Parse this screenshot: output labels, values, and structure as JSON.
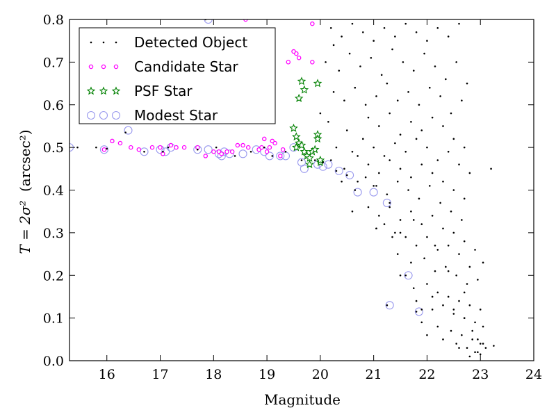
{
  "chart_data": {
    "type": "scatter",
    "title": "",
    "xlabel": "Magnitude",
    "ylabel_math": "T = 2σ²",
    "ylabel_unit": "(arcsec²)",
    "xlim": [
      15.3,
      24
    ],
    "ylim": [
      0.0,
      0.8
    ],
    "xticks": [
      "16",
      "17",
      "18",
      "19",
      "20",
      "21",
      "22",
      "23",
      "24"
    ],
    "yticks": [
      "0.0",
      "0.1",
      "0.2",
      "0.3",
      "0.4",
      "0.5",
      "0.6",
      "0.7",
      "0.8"
    ],
    "grid": false,
    "legend_position": "top-left",
    "colors": {
      "detected": "#000000",
      "candidate": "#ff00ff",
      "psf": "#008000",
      "modest": "#9999ee"
    },
    "series": [
      {
        "name": "Detected Object",
        "marker": "dot",
        "x": [
          15.45,
          15.8,
          16.0,
          16.35,
          16.7,
          17.05,
          17.15,
          17.7,
          17.85,
          18.05,
          18.4,
          18.7,
          18.95,
          19.1,
          19.35,
          19.65,
          19.9,
          20.05,
          20.3,
          20.5,
          20.7,
          21.0,
          21.3,
          21.6,
          21.8,
          21.9,
          20.2,
          20.4,
          20.6,
          20.8,
          21.0,
          21.2,
          21.4,
          21.6,
          21.8,
          22.0,
          22.2,
          22.4,
          22.6,
          20.1,
          20.35,
          20.55,
          20.75,
          20.95,
          21.15,
          21.35,
          21.55,
          21.75,
          21.95,
          22.15,
          22.35,
          22.55,
          22.75,
          20.25,
          20.45,
          20.65,
          20.85,
          21.05,
          21.25,
          21.45,
          21.65,
          21.85,
          22.05,
          22.25,
          22.45,
          22.65,
          20.15,
          20.5,
          20.9,
          21.1,
          21.3,
          21.5,
          21.7,
          21.9,
          22.1,
          22.3,
          22.5,
          22.7,
          20.3,
          20.6,
          20.8,
          21.0,
          21.2,
          21.4,
          21.6,
          21.8,
          22.0,
          22.2,
          22.4,
          22.6,
          22.8,
          20.2,
          20.45,
          20.7,
          20.9,
          21.1,
          21.3,
          21.5,
          21.7,
          21.9,
          22.1,
          22.3,
          22.5,
          22.7,
          20.4,
          20.65,
          20.85,
          21.05,
          21.25,
          21.45,
          21.65,
          21.85,
          22.05,
          22.25,
          22.45,
          22.65,
          21.1,
          21.3,
          21.5,
          21.7,
          21.9,
          22.1,
          22.3,
          22.5,
          22.7,
          22.9,
          21.05,
          21.4,
          21.6,
          21.8,
          22.0,
          22.2,
          22.4,
          22.6,
          22.8,
          21.45,
          21.7,
          21.95,
          22.15,
          22.35,
          22.55,
          22.75,
          22.95,
          21.5,
          21.75,
          22.0,
          22.2,
          22.4,
          22.6,
          22.8,
          23.0,
          21.8,
          22.1,
          22.3,
          22.5,
          22.7,
          22.9,
          23.05,
          21.9,
          22.2,
          22.45,
          22.65,
          22.85,
          23.0,
          22.0,
          22.3,
          22.55,
          22.75,
          22.95,
          22.6,
          22.8,
          22.9,
          23.0,
          23.1,
          23.25,
          22.1,
          22.5,
          22.7,
          22.85,
          22.95,
          23.05,
          20.25,
          20.0,
          20.6,
          20.9,
          21.2,
          21.5,
          21.75,
          21.05,
          21.35,
          23.2,
          23.05,
          22.7,
          22.4,
          22.15,
          21.25
        ],
        "y": [
          0.5,
          0.5,
          0.497,
          0.535,
          0.49,
          0.49,
          0.5,
          0.495,
          0.8,
          0.5,
          0.48,
          0.49,
          0.5,
          0.48,
          0.49,
          0.47,
          0.47,
          0.465,
          0.445,
          0.435,
          0.42,
          0.41,
          0.37,
          0.2,
          0.115,
          0.12,
          0.78,
          0.76,
          0.79,
          0.77,
          0.75,
          0.78,
          0.76,
          0.79,
          0.77,
          0.75,
          0.78,
          0.76,
          0.79,
          0.7,
          0.68,
          0.72,
          0.69,
          0.71,
          0.67,
          0.73,
          0.7,
          0.68,
          0.72,
          0.69,
          0.66,
          0.7,
          0.65,
          0.63,
          0.61,
          0.64,
          0.6,
          0.62,
          0.65,
          0.61,
          0.63,
          0.6,
          0.64,
          0.62,
          0.58,
          0.61,
          0.56,
          0.54,
          0.57,
          0.55,
          0.58,
          0.53,
          0.56,
          0.54,
          0.57,
          0.55,
          0.52,
          0.5,
          0.5,
          0.49,
          0.52,
          0.5,
          0.48,
          0.51,
          0.49,
          0.52,
          0.5,
          0.47,
          0.49,
          0.46,
          0.44,
          0.47,
          0.45,
          0.48,
          0.46,
          0.44,
          0.47,
          0.45,
          0.43,
          0.46,
          0.44,
          0.42,
          0.4,
          0.38,
          0.42,
          0.4,
          0.43,
          0.41,
          0.39,
          0.42,
          0.4,
          0.38,
          0.41,
          0.37,
          0.35,
          0.33,
          0.34,
          0.36,
          0.33,
          0.35,
          0.32,
          0.34,
          0.31,
          0.3,
          0.28,
          0.26,
          0.31,
          0.3,
          0.29,
          0.27,
          0.29,
          0.26,
          0.27,
          0.25,
          0.22,
          0.25,
          0.23,
          0.24,
          0.21,
          0.22,
          0.2,
          0.18,
          0.19,
          0.2,
          0.17,
          0.18,
          0.16,
          0.15,
          0.14,
          0.13,
          0.12,
          0.14,
          0.12,
          0.13,
          0.11,
          0.1,
          0.09,
          0.08,
          0.09,
          0.08,
          0.07,
          0.06,
          0.05,
          0.04,
          0.06,
          0.05,
          0.04,
          0.03,
          0.02,
          0.03,
          0.01,
          0.02,
          0.015,
          0.03,
          0.035,
          0.15,
          0.12,
          0.1,
          0.07,
          0.05,
          0.04,
          0.74,
          0.58,
          0.35,
          0.36,
          0.32,
          0.3,
          0.33,
          0.31,
          0.29,
          0.45,
          0.23,
          0.16,
          0.21,
          0.27,
          0.13
        ]
      },
      {
        "name": "Candidate Star",
        "marker": "ring",
        "x": [
          15.95,
          16.1,
          16.25,
          16.45,
          16.6,
          16.85,
          17.0,
          17.05,
          17.2,
          17.3,
          17.45,
          17.7,
          17.85,
          18.0,
          18.1,
          18.15,
          18.25,
          18.35,
          18.45,
          18.55,
          18.65,
          18.85,
          18.95,
          19.0,
          19.05,
          19.15,
          19.25,
          19.3,
          19.55,
          19.6,
          19.85,
          18.9,
          19.1,
          19.4,
          19.5,
          19.85,
          18.6
        ],
        "y": [
          0.495,
          0.515,
          0.51,
          0.5,
          0.495,
          0.5,
          0.5,
          0.485,
          0.505,
          0.5,
          0.5,
          0.5,
          0.48,
          0.49,
          0.49,
          0.485,
          0.49,
          0.49,
          0.505,
          0.505,
          0.5,
          0.495,
          0.52,
          0.49,
          0.5,
          0.51,
          0.48,
          0.495,
          0.72,
          0.71,
          0.79,
          0.5,
          0.515,
          0.7,
          0.725,
          0.7,
          0.8
        ]
      },
      {
        "name": "PSF Star",
        "marker": "star",
        "x": [
          19.5,
          19.55,
          19.6,
          19.65,
          19.7,
          19.75,
          19.8,
          19.85,
          19.9,
          19.95,
          20.0,
          19.65,
          19.7,
          19.95,
          19.6,
          19.55,
          19.8,
          20.0,
          19.95
        ],
        "y": [
          0.545,
          0.525,
          0.51,
          0.505,
          0.49,
          0.48,
          0.475,
          0.49,
          0.495,
          0.53,
          0.465,
          0.655,
          0.635,
          0.65,
          0.615,
          0.5,
          0.46,
          0.47,
          0.52
        ]
      },
      {
        "name": "Modest Star",
        "marker": "hollow",
        "x": [
          15.3,
          15.95,
          16.4,
          16.7,
          17.0,
          17.1,
          17.2,
          17.7,
          17.9,
          18.1,
          18.2,
          18.3,
          18.55,
          18.8,
          18.95,
          19.05,
          19.25,
          19.5,
          19.65,
          19.7,
          19.95,
          20.05,
          20.15,
          20.35,
          20.55,
          20.7,
          21.0,
          21.25,
          21.3,
          21.65,
          21.85,
          17.9,
          18.15,
          19.35
        ],
        "y": [
          0.5,
          0.495,
          0.54,
          0.49,
          0.495,
          0.49,
          0.5,
          0.495,
          0.8,
          0.485,
          0.49,
          0.485,
          0.485,
          0.495,
          0.49,
          0.48,
          0.48,
          0.5,
          0.465,
          0.45,
          0.46,
          0.455,
          0.46,
          0.445,
          0.435,
          0.395,
          0.395,
          0.37,
          0.13,
          0.2,
          0.115,
          0.495,
          0.48,
          0.48
        ]
      }
    ]
  }
}
